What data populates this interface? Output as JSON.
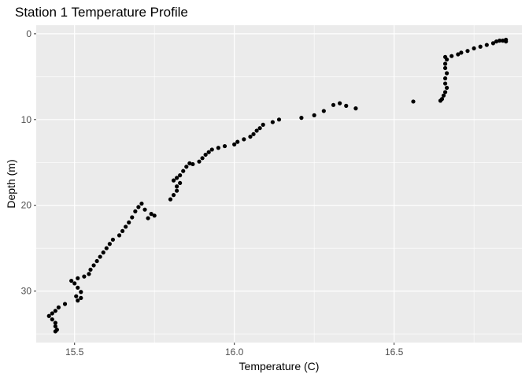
{
  "chart_data": {
    "type": "scatter",
    "title": "Station 1 Temperature Profile",
    "xlabel": "Temperature (C)",
    "ylabel": "Depth (m)",
    "xlim": [
      15.38,
      16.9
    ],
    "ylim": [
      -1,
      36
    ],
    "y_reversed": true,
    "x_ticks": [
      15.5,
      16.0,
      16.5
    ],
    "x_tick_labels": [
      "15.5",
      "16.0",
      "16.5"
    ],
    "y_ticks": [
      0,
      10,
      20,
      30
    ],
    "y_tick_labels": [
      "0",
      "10",
      "20",
      "30"
    ],
    "grid": true,
    "legend": "none",
    "colors": {
      "panel": "#ebebeb",
      "grid": "#ffffff",
      "point": "#000000"
    },
    "points": [
      {
        "x": 16.85,
        "y": 0.7
      },
      {
        "x": 16.84,
        "y": 0.8
      },
      {
        "x": 16.83,
        "y": 0.8
      },
      {
        "x": 16.82,
        "y": 0.9
      },
      {
        "x": 16.85,
        "y": 0.9
      },
      {
        "x": 16.81,
        "y": 1.1
      },
      {
        "x": 16.79,
        "y": 1.3
      },
      {
        "x": 16.77,
        "y": 1.5
      },
      {
        "x": 16.75,
        "y": 1.7
      },
      {
        "x": 16.73,
        "y": 2.0
      },
      {
        "x": 16.71,
        "y": 2.2
      },
      {
        "x": 16.7,
        "y": 2.4
      },
      {
        "x": 16.68,
        "y": 2.6
      },
      {
        "x": 16.66,
        "y": 2.7
      },
      {
        "x": 16.665,
        "y": 3.0
      },
      {
        "x": 16.66,
        "y": 3.5
      },
      {
        "x": 16.66,
        "y": 4.0
      },
      {
        "x": 16.665,
        "y": 4.6
      },
      {
        "x": 16.66,
        "y": 5.2
      },
      {
        "x": 16.66,
        "y": 5.8
      },
      {
        "x": 16.665,
        "y": 6.3
      },
      {
        "x": 16.66,
        "y": 6.8
      },
      {
        "x": 16.655,
        "y": 7.2
      },
      {
        "x": 16.65,
        "y": 7.6
      },
      {
        "x": 16.645,
        "y": 7.8
      },
      {
        "x": 16.56,
        "y": 7.9
      },
      {
        "x": 16.38,
        "y": 8.7
      },
      {
        "x": 16.35,
        "y": 8.4
      },
      {
        "x": 16.33,
        "y": 8.1
      },
      {
        "x": 16.31,
        "y": 8.3
      },
      {
        "x": 16.28,
        "y": 9.0
      },
      {
        "x": 16.25,
        "y": 9.5
      },
      {
        "x": 16.21,
        "y": 9.8
      },
      {
        "x": 16.14,
        "y": 10.0
      },
      {
        "x": 16.12,
        "y": 10.3
      },
      {
        "x": 16.09,
        "y": 10.6
      },
      {
        "x": 16.08,
        "y": 11.0
      },
      {
        "x": 16.07,
        "y": 11.3
      },
      {
        "x": 16.06,
        "y": 11.7
      },
      {
        "x": 16.05,
        "y": 12.0
      },
      {
        "x": 16.03,
        "y": 12.3
      },
      {
        "x": 16.01,
        "y": 12.6
      },
      {
        "x": 16.0,
        "y": 12.9
      },
      {
        "x": 15.97,
        "y": 13.1
      },
      {
        "x": 15.95,
        "y": 13.3
      },
      {
        "x": 15.93,
        "y": 13.5
      },
      {
        "x": 15.92,
        "y": 13.8
      },
      {
        "x": 15.91,
        "y": 14.1
      },
      {
        "x": 15.9,
        "y": 14.5
      },
      {
        "x": 15.89,
        "y": 14.9
      },
      {
        "x": 15.87,
        "y": 15.2
      },
      {
        "x": 15.85,
        "y": 15.5
      },
      {
        "x": 15.86,
        "y": 15.1
      },
      {
        "x": 15.84,
        "y": 16.0
      },
      {
        "x": 15.83,
        "y": 16.5
      },
      {
        "x": 15.82,
        "y": 16.8
      },
      {
        "x": 15.81,
        "y": 17.1
      },
      {
        "x": 15.83,
        "y": 17.4
      },
      {
        "x": 15.82,
        "y": 17.8
      },
      {
        "x": 15.82,
        "y": 18.3
      },
      {
        "x": 15.81,
        "y": 18.8
      },
      {
        "x": 15.8,
        "y": 19.3
      },
      {
        "x": 15.75,
        "y": 21.2
      },
      {
        "x": 15.74,
        "y": 21.0
      },
      {
        "x": 15.72,
        "y": 20.5
      },
      {
        "x": 15.71,
        "y": 19.8
      },
      {
        "x": 15.7,
        "y": 20.2
      },
      {
        "x": 15.73,
        "y": 21.5
      },
      {
        "x": 15.69,
        "y": 20.7
      },
      {
        "x": 15.68,
        "y": 21.4
      },
      {
        "x": 15.67,
        "y": 22.0
      },
      {
        "x": 15.66,
        "y": 22.5
      },
      {
        "x": 15.65,
        "y": 23.0
      },
      {
        "x": 15.64,
        "y": 23.5
      },
      {
        "x": 15.62,
        "y": 24.0
      },
      {
        "x": 15.61,
        "y": 24.5
      },
      {
        "x": 15.6,
        "y": 25.0
      },
      {
        "x": 15.59,
        "y": 25.5
      },
      {
        "x": 15.58,
        "y": 26.0
      },
      {
        "x": 15.57,
        "y": 26.5
      },
      {
        "x": 15.56,
        "y": 27.0
      },
      {
        "x": 15.55,
        "y": 27.5
      },
      {
        "x": 15.545,
        "y": 28.0
      },
      {
        "x": 15.53,
        "y": 28.3
      },
      {
        "x": 15.51,
        "y": 28.5
      },
      {
        "x": 15.49,
        "y": 28.8
      },
      {
        "x": 15.5,
        "y": 29.1
      },
      {
        "x": 15.51,
        "y": 29.6
      },
      {
        "x": 15.52,
        "y": 30.1
      },
      {
        "x": 15.505,
        "y": 30.6
      },
      {
        "x": 15.52,
        "y": 30.8
      },
      {
        "x": 15.51,
        "y": 31.1
      },
      {
        "x": 15.47,
        "y": 31.5
      },
      {
        "x": 15.45,
        "y": 31.9
      },
      {
        "x": 15.44,
        "y": 32.3
      },
      {
        "x": 15.43,
        "y": 32.6
      },
      {
        "x": 15.42,
        "y": 32.9
      },
      {
        "x": 15.43,
        "y": 33.3
      },
      {
        "x": 15.44,
        "y": 33.7
      },
      {
        "x": 15.44,
        "y": 34.1
      },
      {
        "x": 15.445,
        "y": 34.5
      },
      {
        "x": 15.44,
        "y": 34.7
      }
    ]
  }
}
